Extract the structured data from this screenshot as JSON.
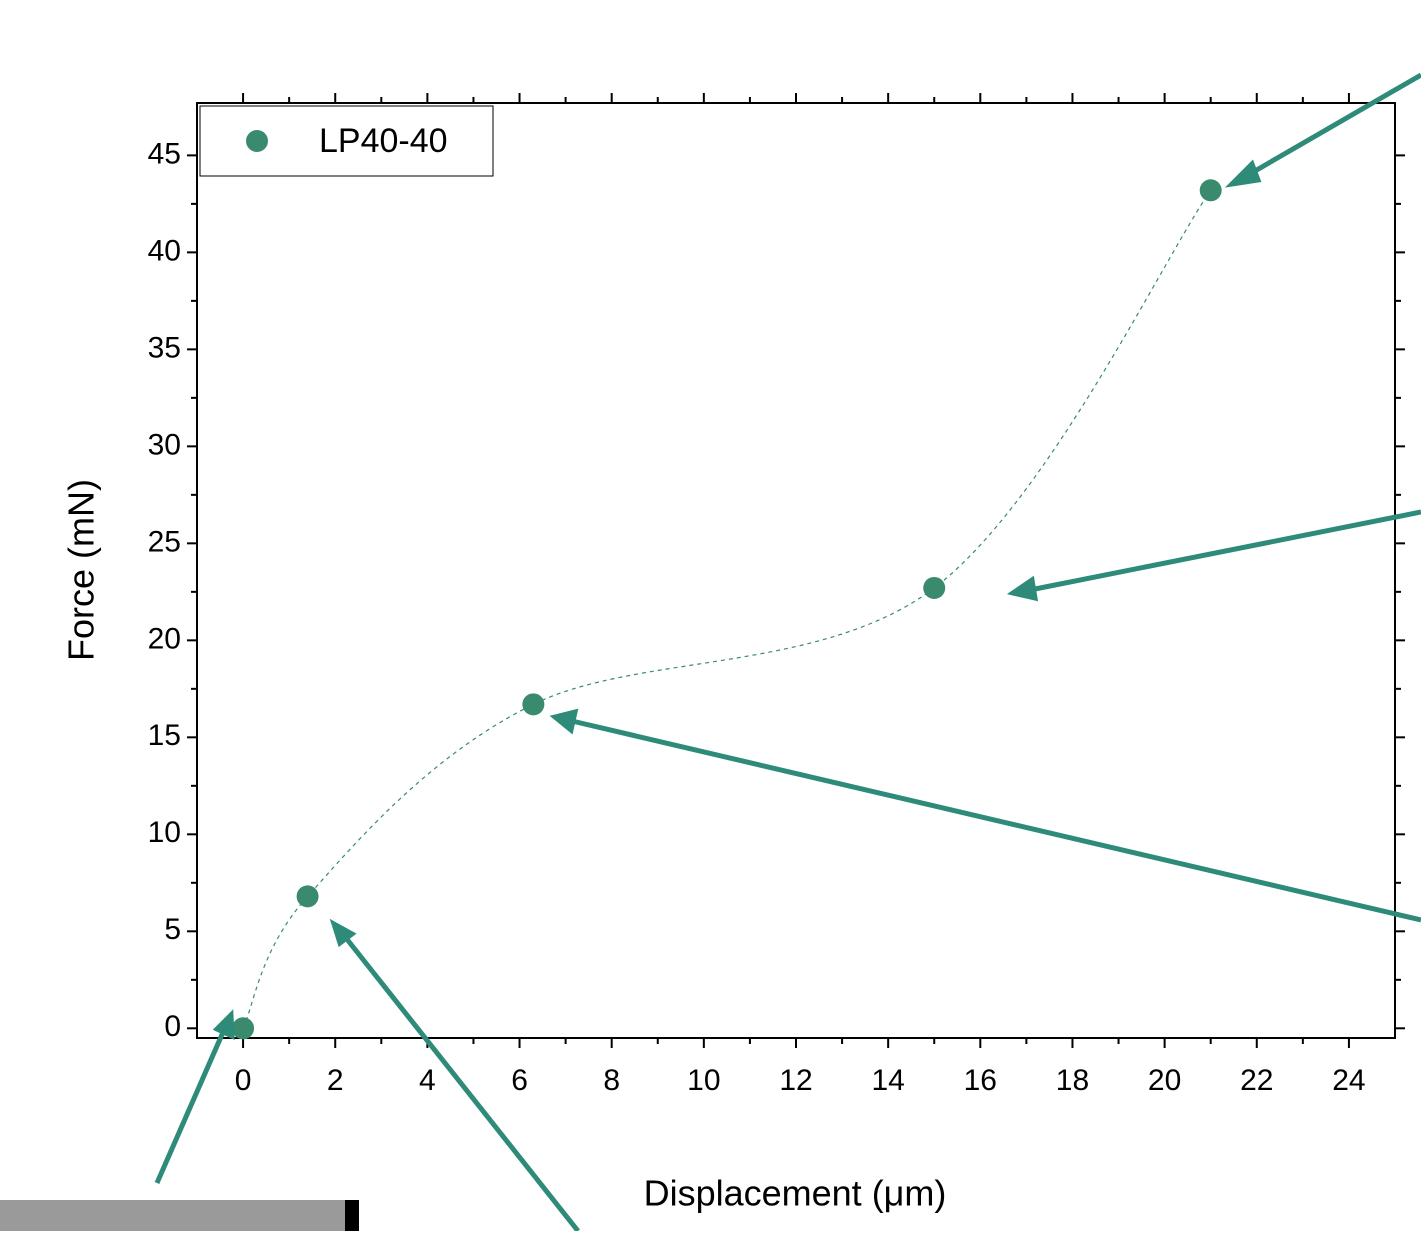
{
  "chart_data": {
    "type": "scatter",
    "x_label": "Displacement (μm)",
    "y_label": "Force (mN)",
    "series": [
      {
        "name": "LP40-40",
        "color": "#3a8a6e",
        "x": [
          0,
          1.4,
          6.3,
          15,
          21
        ],
        "values": [
          0,
          6.8,
          16.7,
          22.7,
          43.2
        ]
      }
    ],
    "xlim": [
      -1,
      25
    ],
    "ylim": [
      -0.5,
      47.7
    ],
    "xticks": [
      0,
      2,
      4,
      6,
      8,
      10,
      12,
      14,
      16,
      18,
      20,
      22,
      24
    ],
    "yticks": [
      0,
      5,
      10,
      15,
      20,
      25,
      30,
      35,
      40,
      45
    ],
    "legend": "upper left",
    "grid": false
  }
}
